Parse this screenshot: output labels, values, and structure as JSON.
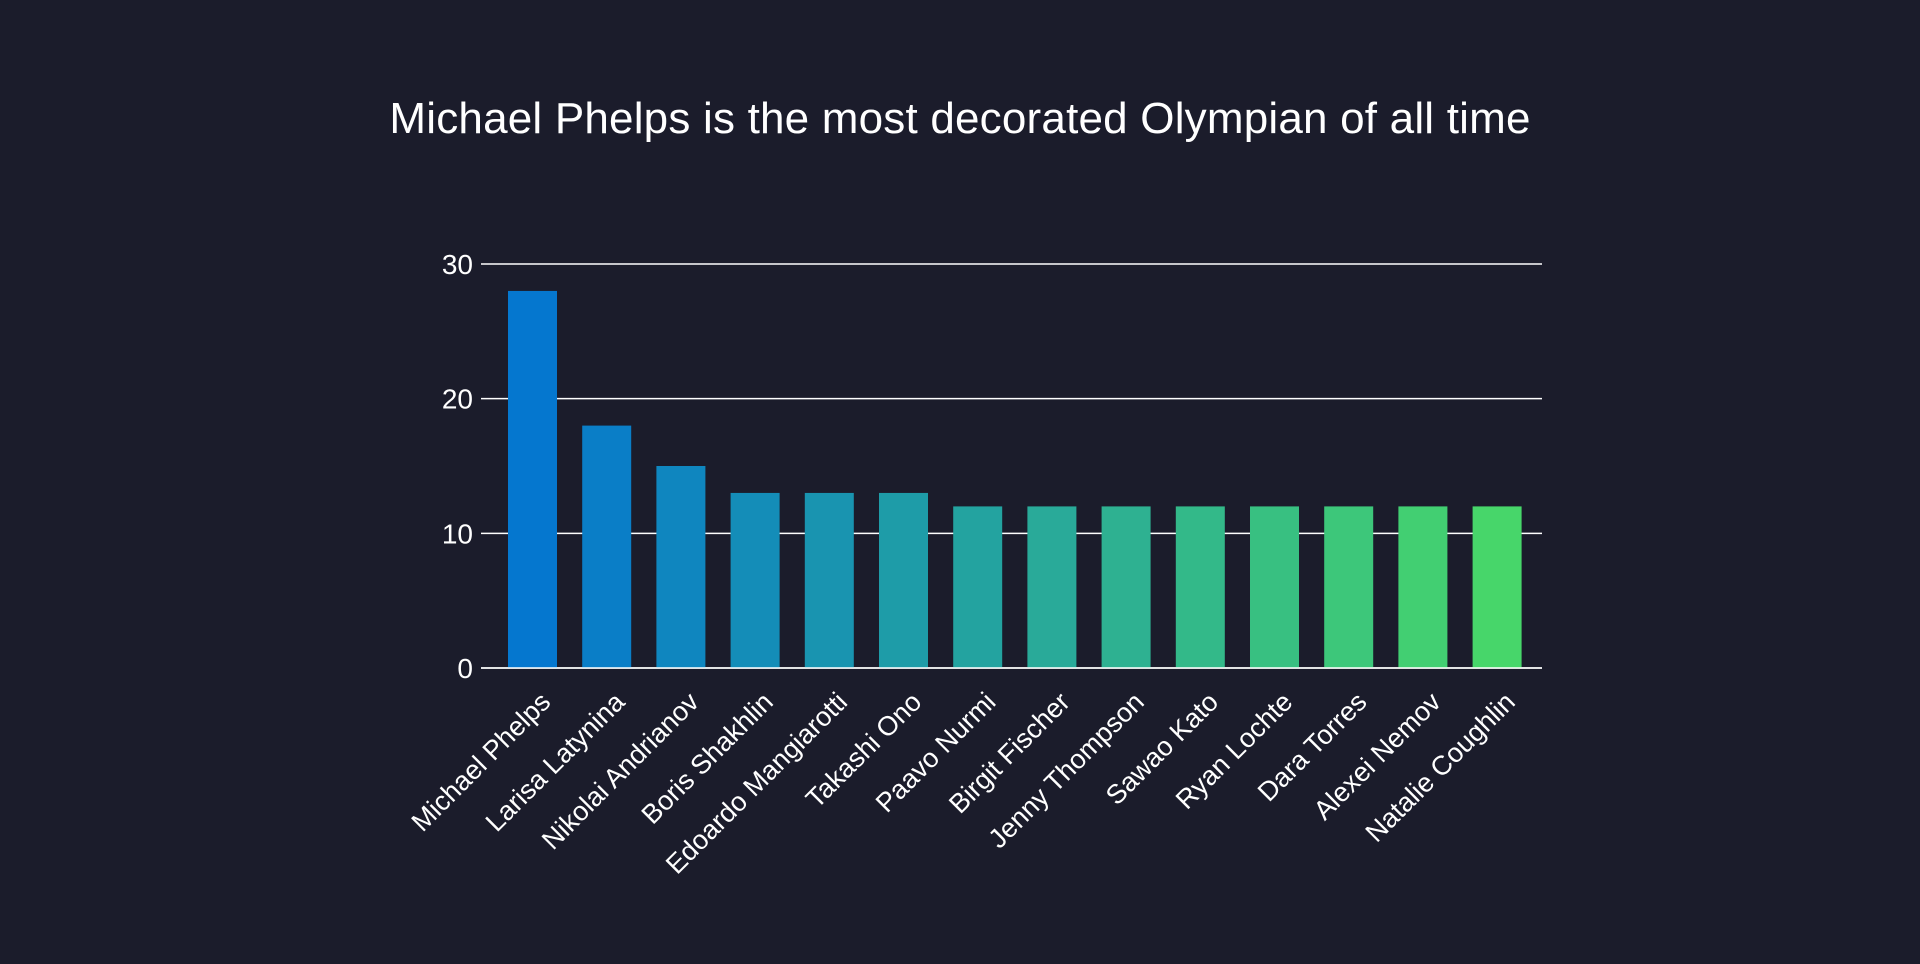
{
  "chart_data": {
    "type": "bar",
    "title": "Michael Phelps is the most decorated Olympian of all time",
    "xlabel": "",
    "ylabel": "",
    "ylim": [
      0,
      30
    ],
    "yticks": [
      0,
      10,
      20,
      30
    ],
    "grid": true,
    "categories": [
      "Michael Phelps",
      "Larisa Latynina",
      "Nikolai Andrianov",
      "Boris Shakhlin",
      "Edoardo Mangiarotti",
      "Takashi Ono",
      "Paavo Nurmi",
      "Birgit Fischer",
      "Jenny Thompson",
      "Sawao Kato",
      "Ryan Lochte",
      "Dara Torres",
      "Alexei Nemov",
      "Natalie Coughlin"
    ],
    "values": [
      28,
      18,
      15,
      13,
      13,
      13,
      12,
      12,
      12,
      12,
      12,
      12,
      12,
      12
    ],
    "colors": {
      "background": "#1b1c2b",
      "bar_start": "#0577cf",
      "bar_end": "#47d66a",
      "text": "#ffffff",
      "grid": "#ffffff"
    }
  }
}
